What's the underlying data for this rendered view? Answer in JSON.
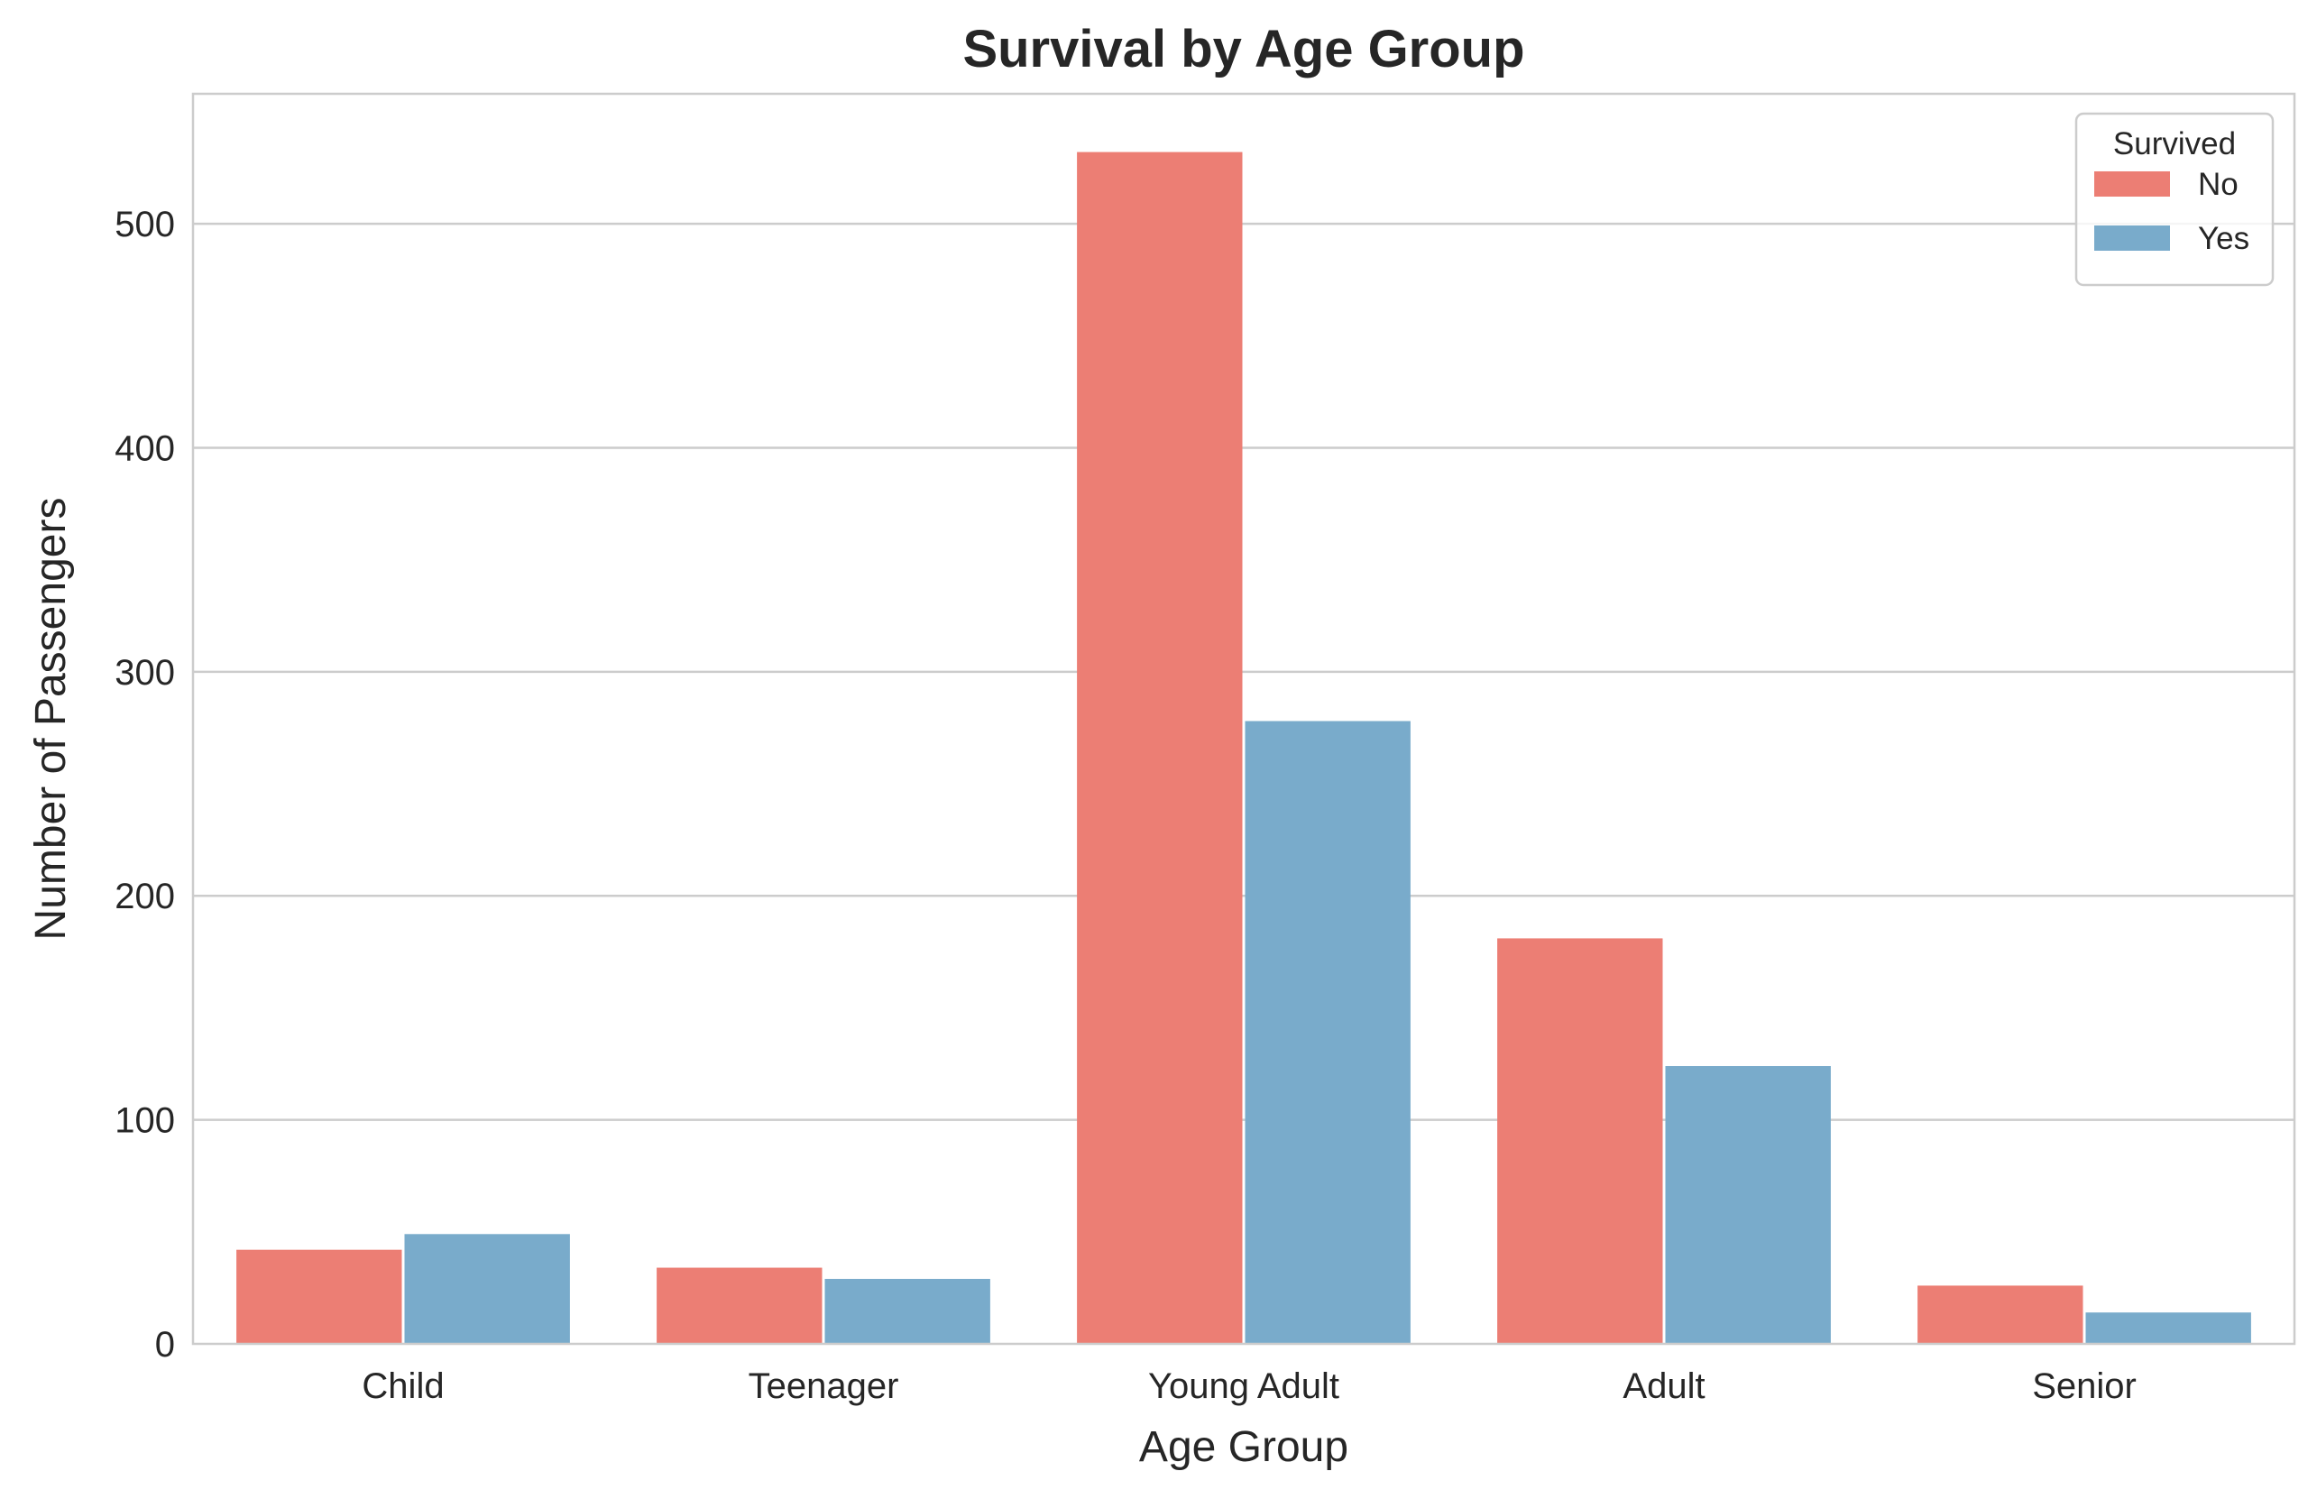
{
  "chart_data": {
    "type": "bar",
    "title": "Survival by Age Group",
    "xlabel": "Age Group",
    "ylabel": "Number of Passengers",
    "categories": [
      "Child",
      "Teenager",
      "Young Adult",
      "Adult",
      "Senior"
    ],
    "series": [
      {
        "name": "No",
        "color": "#ec7e74",
        "values": [
          42,
          34,
          532,
          181,
          26
        ]
      },
      {
        "name": "Yes",
        "color": "#79abcb",
        "values": [
          49,
          29,
          278,
          124,
          14
        ]
      }
    ],
    "ylim": [
      0,
      558
    ],
    "yticks": [
      0,
      100,
      200,
      300,
      400,
      500
    ],
    "grid": true,
    "legend": {
      "title": "Survived",
      "placement": "top-right"
    }
  }
}
